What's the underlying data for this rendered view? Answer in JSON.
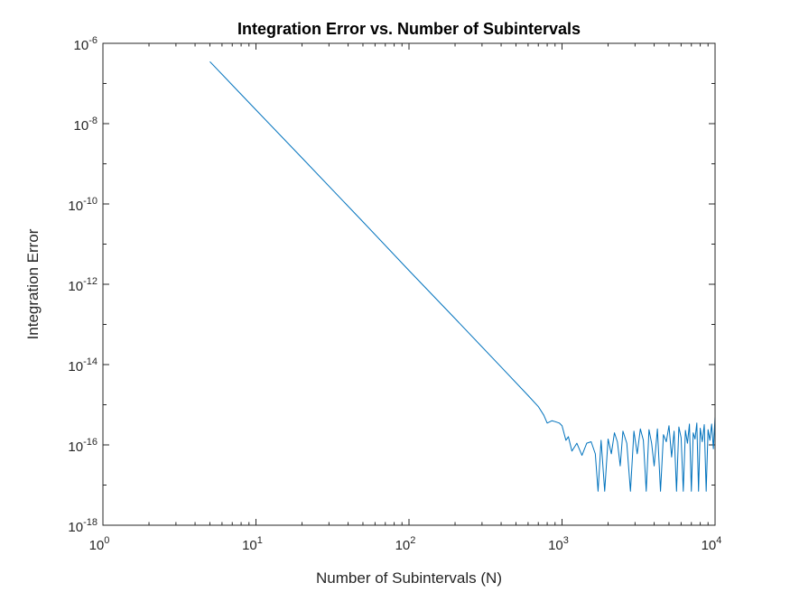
{
  "chart_data": {
    "type": "line",
    "title": "Integration Error vs. Number of Subintervals",
    "xlabel": "Number of Subintervals (N)",
    "ylabel": "Integration Error",
    "xscale": "log",
    "yscale": "log",
    "xlim": [
      1,
      10000
    ],
    "ylim": [
      1e-18,
      1e-06
    ],
    "grid": false,
    "line_color": "#0072BD",
    "x_ticks": [
      {
        "base": "10",
        "exp": "0",
        "value": 1
      },
      {
        "base": "10",
        "exp": "1",
        "value": 10
      },
      {
        "base": "10",
        "exp": "2",
        "value": 100
      },
      {
        "base": "10",
        "exp": "3",
        "value": 1000
      },
      {
        "base": "10",
        "exp": "4",
        "value": 10000
      }
    ],
    "y_ticks": [
      {
        "base": "10",
        "exp": "-6",
        "value": 1e-06
      },
      {
        "base": "10",
        "exp": "-8",
        "value": 1e-08
      },
      {
        "base": "10",
        "exp": "-10",
        "value": 1e-10
      },
      {
        "base": "10",
        "exp": "-12",
        "value": 1e-12
      },
      {
        "base": "10",
        "exp": "-14",
        "value": 1e-14
      },
      {
        "base": "10",
        "exp": "-16",
        "value": 1e-16
      },
      {
        "base": "10",
        "exp": "-18",
        "value": 1e-18
      }
    ],
    "series": [
      {
        "x": [
          5,
          10,
          20,
          50,
          100,
          200,
          400,
          600,
          700,
          760,
          800,
          860,
          900,
          960,
          1000,
          1060,
          1100,
          1160,
          1250,
          1350,
          1450,
          1550,
          1650,
          1720,
          1800,
          1900,
          2000,
          2100,
          2200,
          2300,
          2400,
          2500,
          2650,
          2800,
          2950,
          3100,
          3250,
          3400,
          3550,
          3700,
          3850,
          4000,
          4200,
          4400,
          4600,
          4800,
          5000,
          5200,
          5400,
          5600,
          5800,
          6000,
          6200,
          6400,
          6600,
          6800,
          7000,
          7200,
          7400,
          7600,
          7800,
          8000,
          8250,
          8500,
          8750,
          9000,
          9250,
          9500,
          9750,
          10000
        ],
        "y": [
          3.5e-07,
          2.2e-08,
          1.4e-09,
          3.6e-11,
          2.2e-12,
          1.4e-13,
          8.7e-15,
          1.7e-15,
          9e-16,
          5.5e-16,
          3.5e-16,
          4e-16,
          3.8e-16,
          3.5e-16,
          3e-16,
          1.3e-16,
          1.6e-16,
          7e-17,
          1.1e-16,
          5.5e-17,
          1.1e-16,
          1.2e-16,
          6e-17,
          7e-18,
          1.3e-16,
          7e-18,
          1.4e-16,
          6e-17,
          2e-16,
          1.2e-16,
          3e-17,
          2.2e-16,
          1.1e-16,
          7e-18,
          2.2e-16,
          6e-17,
          2.5e-16,
          1.3e-16,
          7e-18,
          2.4e-16,
          1.1e-16,
          3e-17,
          2.5e-16,
          7e-18,
          1.8e-16,
          1.2e-16,
          3e-16,
          5e-17,
          2.2e-16,
          7e-18,
          2.8e-16,
          1.5e-16,
          7e-18,
          2.3e-16,
          1.1e-16,
          3.3e-16,
          7e-18,
          2e-16,
          1.4e-16,
          3.5e-16,
          7e-18,
          2.6e-16,
          1.2e-16,
          3.2e-16,
          7e-18,
          2.4e-16,
          1.3e-16,
          3.3e-16,
          8e-17,
          5e-16
        ]
      }
    ]
  }
}
